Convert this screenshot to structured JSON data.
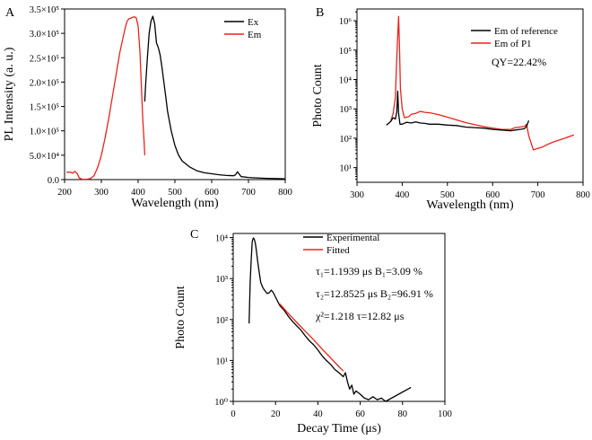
{
  "chart_data": [
    {
      "panel": "A",
      "type": "line",
      "xlabel": "Wavelength (nm)",
      "ylabel": "PL Intensity (a. u.)",
      "xlim": [
        200,
        800
      ],
      "ylim": [
        0,
        350000
      ],
      "xticks": [
        "200",
        "300",
        "400",
        "500",
        "600",
        "700",
        "800"
      ],
      "yticks": [
        "0.0",
        "5.0×10⁴",
        "1.0×10⁵",
        "1.5×10⁵",
        "2.0×10⁵",
        "2.5×10⁵",
        "3.0×10⁵",
        "3.5×10⁵"
      ],
      "legend": [
        {
          "label": "Ex",
          "color": "#000000"
        },
        {
          "label": "Em",
          "color": "#e8231b"
        }
      ],
      "series": [
        {
          "name": "Em",
          "color": "#e8231b",
          "x": [
            205,
            215,
            222,
            228,
            235,
            240,
            248,
            255,
            262,
            270,
            280,
            290,
            300,
            310,
            320,
            330,
            340,
            350,
            360,
            365,
            370,
            375,
            380,
            385,
            390,
            395,
            400,
            405,
            410,
            413,
            416,
            418
          ],
          "y": [
            15000,
            15500,
            13000,
            17000,
            12000,
            3000,
            1000,
            700,
            900,
            2000,
            8000,
            25000,
            50000,
            85000,
            125000,
            170000,
            215000,
            260000,
            295000,
            312000,
            325000,
            330000,
            331000,
            333000,
            334000,
            332000,
            315000,
            260000,
            170000,
            120000,
            80000,
            50000
          ]
        },
        {
          "name": "Ex",
          "color": "#000000",
          "x": [
            418,
            420,
            425,
            430,
            435,
            440,
            445,
            450,
            455,
            460,
            465,
            470,
            475,
            480,
            490,
            500,
            510,
            520,
            540,
            560,
            580,
            600,
            620,
            640,
            660,
            665,
            670,
            675,
            680,
            700,
            720,
            750,
            780,
            800
          ],
          "y": [
            160000,
            190000,
            250000,
            300000,
            325000,
            335000,
            320000,
            280000,
            270000,
            255000,
            230000,
            200000,
            170000,
            140000,
            100000,
            70000,
            50000,
            38000,
            26000,
            18000,
            14000,
            12000,
            10000,
            8500,
            8000,
            10000,
            16000,
            11000,
            6000,
            4500,
            3500,
            2500,
            2000,
            1500
          ]
        }
      ]
    },
    {
      "panel": "B",
      "type": "line",
      "xlabel": "Wavelength (nm)",
      "ylabel": "Photo Count",
      "xlim": [
        300,
        800
      ],
      "ylog": true,
      "ylim_exp": [
        0.5,
        6.4
      ],
      "xticks": [
        "300",
        "400",
        "500",
        "600",
        "700",
        "800"
      ],
      "yticks": [
        "10¹",
        "10²",
        "10³",
        "10⁴",
        "10⁵",
        "10⁶"
      ],
      "legend": [
        {
          "label": "Em of  reference",
          "color": "#000000"
        },
        {
          "label": "Em of  P1",
          "color": "#e8231b"
        }
      ],
      "annotation": "QY=22.42%",
      "series": [
        {
          "name": "Em of P1",
          "color": "#e8231b",
          "x": [
            375,
            380,
            385,
            388,
            390,
            392,
            394,
            396,
            400,
            405,
            410,
            415,
            420,
            430,
            440,
            450,
            460,
            480,
            500,
            520,
            540,
            560,
            580,
            600,
            620,
            640,
            650,
            660,
            670,
            675,
            680,
            690,
            700,
            710,
            720,
            730,
            740,
            760,
            780
          ],
          "y": [
            400,
            700,
            2500,
            60000,
            300000,
            1400000,
            120000,
            5000,
            1000,
            500,
            520,
            550,
            650,
            700,
            820,
            760,
            740,
            640,
            520,
            420,
            340,
            290,
            250,
            220,
            200,
            200,
            230,
            240,
            250,
            300,
            120,
            40,
            45,
            50,
            60,
            70,
            80,
            100,
            130
          ]
        },
        {
          "name": "Em of reference",
          "color": "#000000",
          "x": [
            365,
            370,
            375,
            380,
            385,
            388,
            390,
            392,
            395,
            400,
            410,
            420,
            430,
            440,
            450,
            460,
            480,
            500,
            520,
            540,
            560,
            580,
            600,
            620,
            640,
            650,
            660,
            670,
            675,
            680
          ],
          "y": [
            280,
            320,
            380,
            500,
            450,
            800,
            4000,
            700,
            300,
            300,
            350,
            330,
            360,
            330,
            320,
            300,
            300,
            280,
            270,
            240,
            230,
            220,
            200,
            190,
            180,
            190,
            200,
            210,
            250,
            400
          ]
        }
      ]
    },
    {
      "panel": "C",
      "type": "line",
      "xlabel": "Decay Time (μs)",
      "ylabel": "Photo Count",
      "xlim": [
        0,
        100
      ],
      "ylog": true,
      "ylim_exp": [
        0,
        4.1
      ],
      "xticks": [
        "0",
        "20",
        "40",
        "60",
        "80",
        "100"
      ],
      "yticks": [
        "10⁰",
        "10¹",
        "10²",
        "10³",
        "10⁴"
      ],
      "legend": [
        {
          "label": "Experimental",
          "color": "#000000"
        },
        {
          "label": "Fitted",
          "color": "#e8231b"
        }
      ],
      "annotations": [
        {
          "line1": "τ₁=1.1939 μs  B₁=3.09 %"
        },
        {
          "line1": "τ₂=12.8525 μs  B₂=96.91 %"
        },
        {
          "line1": "χ²=1.218           τ=12.82 μs"
        }
      ],
      "series": [
        {
          "name": "Experimental",
          "color": "#000000",
          "x": [
            7.5,
            8,
            8.5,
            9,
            9.5,
            10,
            10.5,
            11,
            11.5,
            12,
            12.5,
            13,
            14,
            15,
            16,
            17,
            18,
            19,
            20,
            22,
            24,
            26,
            28,
            30,
            32,
            34,
            36,
            38,
            40,
            42,
            44,
            46,
            48,
            50,
            52,
            53,
            54,
            55,
            56,
            57,
            58,
            60,
            62,
            64,
            66,
            68,
            70,
            72,
            84
          ],
          "y": [
            80,
            800,
            3000,
            8000,
            9800,
            9000,
            7000,
            4500,
            2800,
            1800,
            1200,
            800,
            600,
            500,
            430,
            450,
            520,
            450,
            350,
            220,
            170,
            120,
            90,
            70,
            55,
            40,
            30,
            24,
            18,
            13,
            10,
            8,
            6,
            5,
            4,
            5,
            3,
            2,
            2.5,
            1.5,
            1.8,
            1.5,
            1.2,
            1.1,
            1.3,
            1.1,
            1.2,
            1.0,
            2.2
          ]
        },
        {
          "name": "Fitted",
          "color": "#e8231b",
          "x": [
            22,
            26,
            30,
            34,
            38,
            42,
            46,
            50,
            52
          ],
          "y": [
            240,
            140,
            85,
            52,
            32,
            19,
            11.5,
            7,
            5.5
          ]
        }
      ]
    }
  ]
}
